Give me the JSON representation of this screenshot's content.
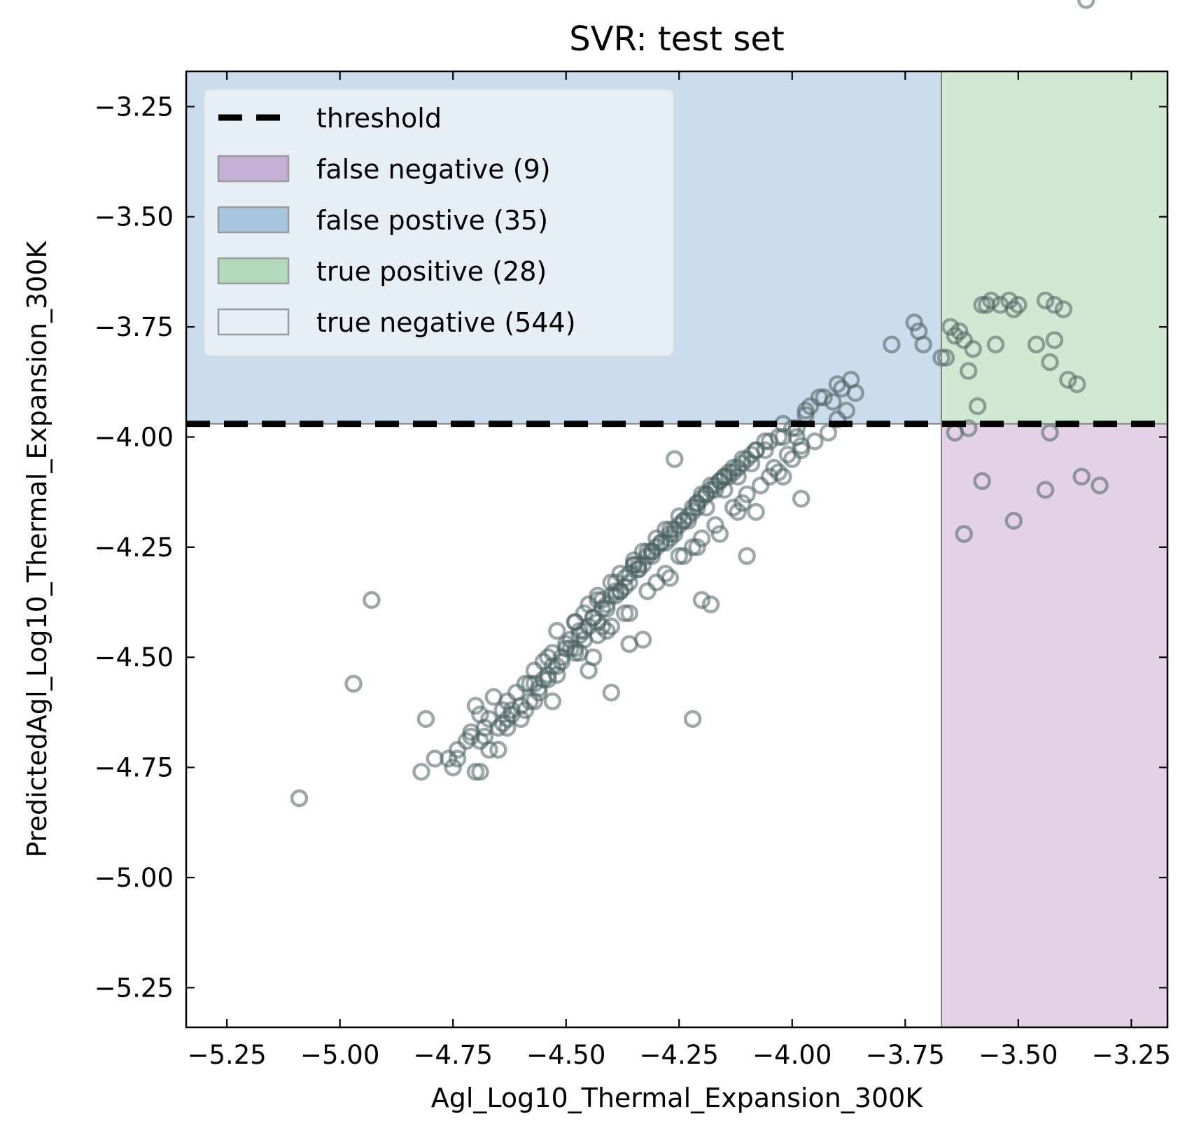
{
  "chart_data": {
    "type": "scatter",
    "title": "SVR: test set",
    "xlabel": "Agl_Log10_Thermal_Expansion_300K",
    "ylabel": "PredictedAgl_Log10_Thermal_Expansion_300K",
    "xlim": [
      -5.34,
      -3.17
    ],
    "ylim": [
      -5.34,
      -3.17
    ],
    "x_ticks": [
      -5.25,
      -5.0,
      -4.75,
      -4.5,
      -4.25,
      -4.0,
      -3.75,
      -3.5,
      -3.25
    ],
    "y_ticks": [
      -3.25,
      -3.5,
      -3.75,
      -4.0,
      -4.25,
      -4.5,
      -4.75,
      -5.0,
      -5.25
    ],
    "x_tick_labels": [
      "−5.25",
      "−5.00",
      "−4.75",
      "−4.50",
      "−4.25",
      "−4.00",
      "−3.75",
      "−3.50",
      "−3.25"
    ],
    "y_tick_labels": [
      "−3.25",
      "−3.50",
      "−3.75",
      "−4.00",
      "−4.25",
      "−4.50",
      "−4.75",
      "−5.00",
      "−5.25"
    ],
    "threshold": {
      "x": -3.67,
      "y": -3.97
    },
    "legend_position": "top-left",
    "legend": [
      {
        "label": "threshold",
        "kind": "dashed-line",
        "color": "#000000"
      },
      {
        "label": "false negative (9)",
        "kind": "patch",
        "color": "#c5b0d5"
      },
      {
        "label": "false postive (35)",
        "kind": "patch",
        "color": "#a9c6df"
      },
      {
        "label": "true positive (28)",
        "kind": "patch",
        "color": "#b3d9bd"
      },
      {
        "label": "true negative (544)",
        "kind": "patch",
        "color": "#e8eef5"
      }
    ],
    "regions": [
      {
        "name": "false-positive-region",
        "color": "#cbdcec",
        "x": [
          -5.34,
          -3.67
        ],
        "y": [
          -3.97,
          -3.17
        ]
      },
      {
        "name": "true-positive-region",
        "color": "#d1e8d3",
        "x": [
          -3.67,
          -3.17
        ],
        "y": [
          -3.97,
          -3.17
        ]
      },
      {
        "name": "false-negative-region",
        "color": "#e3d1e6",
        "x": [
          -3.67,
          -3.17
        ],
        "y": [
          -5.34,
          -3.97
        ]
      }
    ],
    "marker_color": "#4a6360",
    "points_x": [
      -5.09,
      -4.97,
      -4.93,
      -4.82,
      -4.81,
      -4.79,
      -4.74,
      -4.75,
      -4.72,
      -4.71,
      -4.7,
      -4.69,
      -4.68,
      -4.7,
      -4.67,
      -4.65,
      -4.63,
      -4.62,
      -4.6,
      -4.68,
      -4.64,
      -4.66,
      -4.61,
      -4.58,
      -4.57,
      -4.55,
      -4.53,
      -4.5,
      -4.52,
      -4.48,
      -4.46,
      -4.45,
      -4.43,
      -4.4,
      -4.38,
      -4.35,
      -4.33,
      -4.3,
      -4.28,
      -4.25,
      -4.22,
      -4.2,
      -4.18,
      -4.15,
      -4.13,
      -4.1,
      -4.08,
      -4.05,
      -4.02,
      -3.99,
      -4.56,
      -4.54,
      -4.51,
      -4.49,
      -4.47,
      -4.44,
      -4.42,
      -4.39,
      -4.37,
      -4.34,
      -4.32,
      -4.29,
      -4.27,
      -4.24,
      -4.21,
      -4.19,
      -4.16,
      -4.14,
      -4.11,
      -4.09,
      -4.6,
      -4.58,
      -4.55,
      -4.52,
      -4.5,
      -4.47,
      -4.45,
      -4.42,
      -4.4,
      -4.37,
      -4.35,
      -4.32,
      -4.3,
      -4.27,
      -4.25,
      -4.22,
      -4.2,
      -4.17,
      -4.15,
      -4.12,
      -4.57,
      -4.53,
      -4.49,
      -4.46,
      -4.43,
      -4.41,
      -4.38,
      -4.36,
      -4.33,
      -4.31,
      -4.28,
      -4.26,
      -4.23,
      -4.21,
      -4.18,
      -4.16,
      -4.13,
      -4.11,
      -4.08,
      -4.06,
      -4.63,
      -4.59,
      -4.56,
      -4.54,
      -4.51,
      -4.48,
      -4.46,
      -4.44,
      -4.41,
      -4.39,
      -4.36,
      -4.34,
      -4.31,
      -4.29,
      -4.26,
      -4.24,
      -4.21,
      -4.19,
      -4.17,
      -4.14,
      -4.54,
      -4.48,
      -4.43,
      -4.39,
      -4.35,
      -4.31,
      -4.27,
      -4.23,
      -4.19,
      -4.15,
      -4.12,
      -4.09,
      -4.06,
      -4.03,
      -4.0,
      -3.97,
      -4.69,
      -4.64,
      -4.62,
      -4.57,
      -4.52,
      -4.47,
      -4.43,
      -4.4,
      -4.37,
      -4.32,
      -4.28,
      -4.24,
      -4.21,
      -4.17,
      -4.13,
      -4.1,
      -4.07,
      -4.04,
      -4.01,
      -3.98,
      -4.65,
      -4.41,
      -4.36,
      -4.3,
      -4.25,
      -4.2,
      -4.12,
      -4.05,
      -4.0,
      -3.98,
      -3.95,
      -3.92,
      -3.9,
      -3.88,
      -3.91,
      -3.94,
      -3.96,
      -3.89,
      -3.86,
      -3.99,
      -4.02,
      -3.97,
      -3.93,
      -3.9,
      -3.87,
      -4.44,
      -4.33,
      -4.27,
      -4.22,
      -4.11,
      -4.02,
      -3.98,
      -4.45,
      -4.4,
      -4.36,
      -4.22,
      -4.2,
      -4.18,
      -4.1,
      -4.03,
      -4.08,
      -4.16,
      -4.26,
      -4.34,
      -4.38,
      -4.42,
      -4.48,
      -4.53,
      -4.59,
      -4.63,
      -4.67,
      -4.71,
      -4.76,
      -4.69,
      -4.74,
      -3.78,
      -3.73,
      -3.71,
      -3.67,
      -3.64,
      -3.62,
      -3.6,
      -3.58,
      -3.56,
      -3.54,
      -3.52,
      -3.5,
      -3.46,
      -3.44,
      -3.42,
      -3.4,
      -3.37,
      -3.65,
      -3.63,
      -3.61,
      -3.59,
      -3.55,
      -3.57,
      -3.51,
      -3.42,
      -3.43,
      -3.39,
      -3.66,
      -3.72,
      -3.64,
      -3.61,
      -3.62,
      -3.58,
      -3.51,
      -3.43,
      -3.44,
      -3.36,
      -3.32,
      -3.35
    ],
    "points_y": [
      -4.82,
      -4.56,
      -4.37,
      -4.76,
      -4.64,
      -4.73,
      -4.71,
      -4.75,
      -4.69,
      -4.67,
      -4.61,
      -4.63,
      -4.66,
      -4.76,
      -4.64,
      -4.66,
      -4.6,
      -4.62,
      -4.61,
      -4.68,
      -4.62,
      -4.59,
      -4.58,
      -4.56,
      -4.53,
      -4.51,
      -4.49,
      -4.47,
      -4.44,
      -4.42,
      -4.4,
      -4.38,
      -4.36,
      -4.33,
      -4.31,
      -4.28,
      -4.26,
      -4.23,
      -4.21,
      -4.18,
      -4.16,
      -4.13,
      -4.11,
      -4.09,
      -4.07,
      -4.05,
      -4.03,
      -4.01,
      -4.0,
      -3.98,
      -4.58,
      -4.54,
      -4.5,
      -4.46,
      -4.44,
      -4.41,
      -4.37,
      -4.35,
      -4.32,
      -4.3,
      -4.26,
      -4.24,
      -4.21,
      -4.19,
      -4.15,
      -4.13,
      -4.1,
      -4.08,
      -4.06,
      -4.04,
      -4.64,
      -4.6,
      -4.55,
      -4.52,
      -4.48,
      -4.45,
      -4.43,
      -4.39,
      -4.36,
      -4.34,
      -4.29,
      -4.27,
      -4.25,
      -4.22,
      -4.2,
      -4.17,
      -4.14,
      -4.12,
      -4.09,
      -4.07,
      -4.56,
      -4.52,
      -4.48,
      -4.44,
      -4.42,
      -4.38,
      -4.35,
      -4.33,
      -4.29,
      -4.27,
      -4.24,
      -4.22,
      -4.18,
      -4.16,
      -4.12,
      -4.1,
      -4.08,
      -4.05,
      -4.03,
      -4.01,
      -4.66,
      -4.62,
      -4.57,
      -4.55,
      -4.51,
      -4.49,
      -4.46,
      -4.41,
      -4.39,
      -4.36,
      -4.31,
      -4.29,
      -4.26,
      -4.24,
      -4.21,
      -4.19,
      -4.15,
      -4.13,
      -4.11,
      -4.09,
      -4.5,
      -4.42,
      -4.37,
      -4.33,
      -4.29,
      -4.26,
      -4.23,
      -4.19,
      -4.16,
      -4.12,
      -4.09,
      -4.06,
      -4.03,
      -4.0,
      -3.98,
      -3.94,
      -4.69,
      -4.65,
      -4.63,
      -4.6,
      -4.54,
      -4.49,
      -4.45,
      -4.43,
      -4.4,
      -4.35,
      -4.31,
      -4.27,
      -4.25,
      -4.2,
      -4.16,
      -4.13,
      -4.11,
      -4.07,
      -4.04,
      -4.02,
      -4.71,
      -4.44,
      -4.4,
      -4.33,
      -4.27,
      -4.23,
      -4.17,
      -4.09,
      -4.05,
      -4.03,
      -4.01,
      -3.99,
      -3.96,
      -3.94,
      -3.92,
      -3.91,
      -3.93,
      -3.89,
      -3.9,
      -4.0,
      -3.97,
      -3.95,
      -3.91,
      -3.88,
      -3.87,
      -4.5,
      -4.46,
      -4.32,
      -4.25,
      -4.15,
      -4.09,
      -4.14,
      -4.53,
      -4.58,
      -4.47,
      -4.64,
      -4.37,
      -4.38,
      -4.27,
      -4.08,
      -4.17,
      -4.22,
      -4.05,
      -4.3,
      -4.35,
      -4.43,
      -4.48,
      -4.6,
      -4.56,
      -4.64,
      -4.71,
      -4.68,
      -4.73,
      -4.76,
      -4.73,
      -3.79,
      -3.74,
      -3.79,
      -3.82,
      -3.77,
      -3.78,
      -3.8,
      -3.7,
      -3.69,
      -3.7,
      -3.69,
      -3.7,
      -3.79,
      -3.69,
      -3.7,
      -3.71,
      -3.88,
      -3.75,
      -3.76,
      -3.85,
      -3.93,
      -3.79,
      -3.7,
      -3.71,
      -3.78,
      -3.83,
      -3.87,
      -3.82,
      -3.76,
      -3.99,
      -3.98,
      -4.22,
      -4.1,
      -4.19,
      -3.99,
      -4.12,
      -4.09,
      -4.11
    ]
  }
}
